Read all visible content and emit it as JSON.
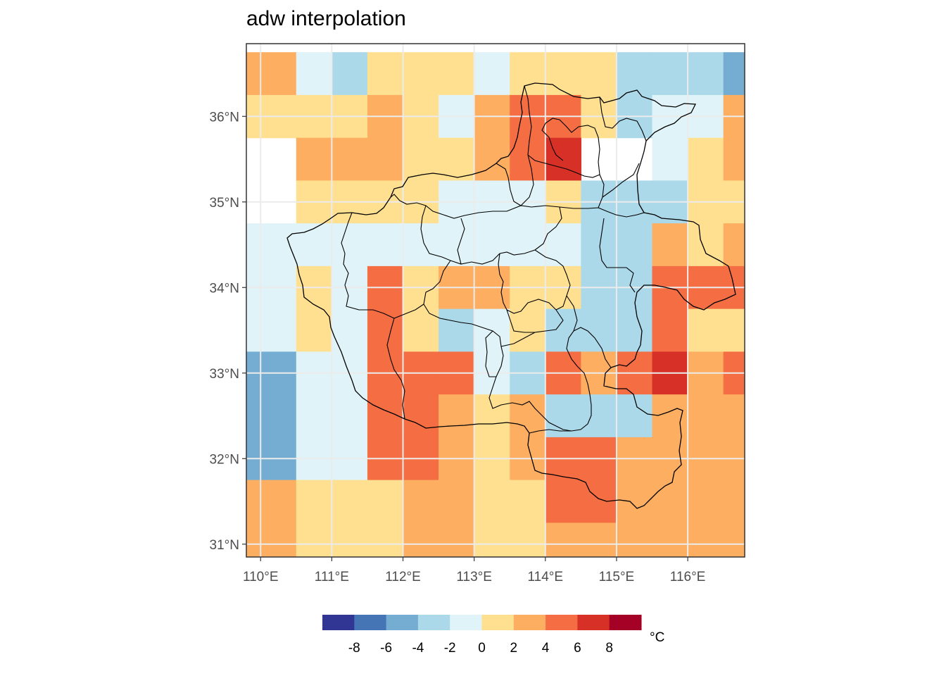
{
  "title": "adw interpolation",
  "legend": {
    "unit": "°C",
    "bins": [
      -10,
      -8,
      -6,
      -4,
      -2,
      0,
      2,
      4,
      6,
      8,
      10
    ],
    "colors": [
      "#313695",
      "#4575b4",
      "#74add1",
      "#abd9e9",
      "#e0f3f8",
      "#fee090",
      "#fdae61",
      "#f46d43",
      "#d73027",
      "#a50026"
    ],
    "ticks": [
      "-8",
      "-6",
      "-4",
      "-2",
      "0",
      "2",
      "4",
      "6",
      "8"
    ]
  },
  "axes": {
    "x_ticks": [
      "110°E",
      "111°E",
      "112°E",
      "113°E",
      "114°E",
      "115°E",
      "116°E"
    ],
    "y_ticks": [
      "31°N",
      "32°N",
      "33°N",
      "34°N",
      "35°N",
      "36°N"
    ]
  },
  "chart_data": {
    "type": "heatmap",
    "description_units": "binned temperature anomaly, class index into legend.colors (-1 = no data)",
    "x_range_lon": [
      109.8,
      116.8
    ],
    "y_range_lat": [
      30.85,
      36.85
    ],
    "cell_size_deg": 0.5,
    "rows_lat_north_to_south": [
      36.5,
      36.0,
      35.5,
      35.0,
      34.5,
      34.0,
      33.5,
      33.0,
      32.5,
      32.0,
      31.5,
      31.0
    ],
    "cols_lon_west_to_east": [
      109.75,
      110.25,
      110.75,
      111.25,
      111.75,
      112.25,
      112.75,
      113.25,
      113.75,
      114.25,
      114.75,
      115.25,
      115.75,
      116.25,
      116.75
    ],
    "grid": [
      [
        6,
        6,
        4,
        3,
        5,
        5,
        5,
        4,
        5,
        5,
        5,
        3,
        3,
        3,
        2
      ],
      [
        5,
        5,
        5,
        5,
        6,
        5,
        4,
        6,
        7,
        7,
        5,
        3,
        4,
        4,
        6
      ],
      [
        -1,
        -1,
        6,
        6,
        6,
        5,
        5,
        6,
        7,
        8,
        -1,
        -1,
        4,
        5,
        6
      ],
      [
        -1,
        -1,
        5,
        5,
        5,
        5,
        4,
        4,
        4,
        5,
        3,
        3,
        3,
        5,
        5
      ],
      [
        4,
        4,
        4,
        4,
        4,
        4,
        4,
        4,
        4,
        4,
        3,
        3,
        6,
        5,
        6
      ],
      [
        4,
        4,
        5,
        4,
        7,
        5,
        6,
        6,
        5,
        5,
        3,
        3,
        7,
        7,
        7
      ],
      [
        4,
        4,
        5,
        4,
        7,
        5,
        3,
        4,
        5,
        3,
        3,
        3,
        7,
        5,
        5
      ],
      [
        2,
        2,
        4,
        4,
        7,
        7,
        7,
        4,
        3,
        7,
        6,
        7,
        8,
        6,
        7
      ],
      [
        2,
        2,
        4,
        4,
        7,
        7,
        6,
        5,
        6,
        3,
        3,
        3,
        6,
        6,
        6
      ],
      [
        2,
        2,
        4,
        4,
        7,
        7,
        6,
        5,
        6,
        7,
        7,
        6,
        6,
        6,
        6
      ],
      [
        6,
        6,
        5,
        5,
        5,
        6,
        6,
        5,
        5,
        7,
        7,
        6,
        6,
        6,
        6
      ],
      [
        6,
        6,
        5,
        5,
        5,
        6,
        6,
        5,
        5,
        6,
        6,
        6,
        6,
        6,
        6
      ]
    ]
  }
}
